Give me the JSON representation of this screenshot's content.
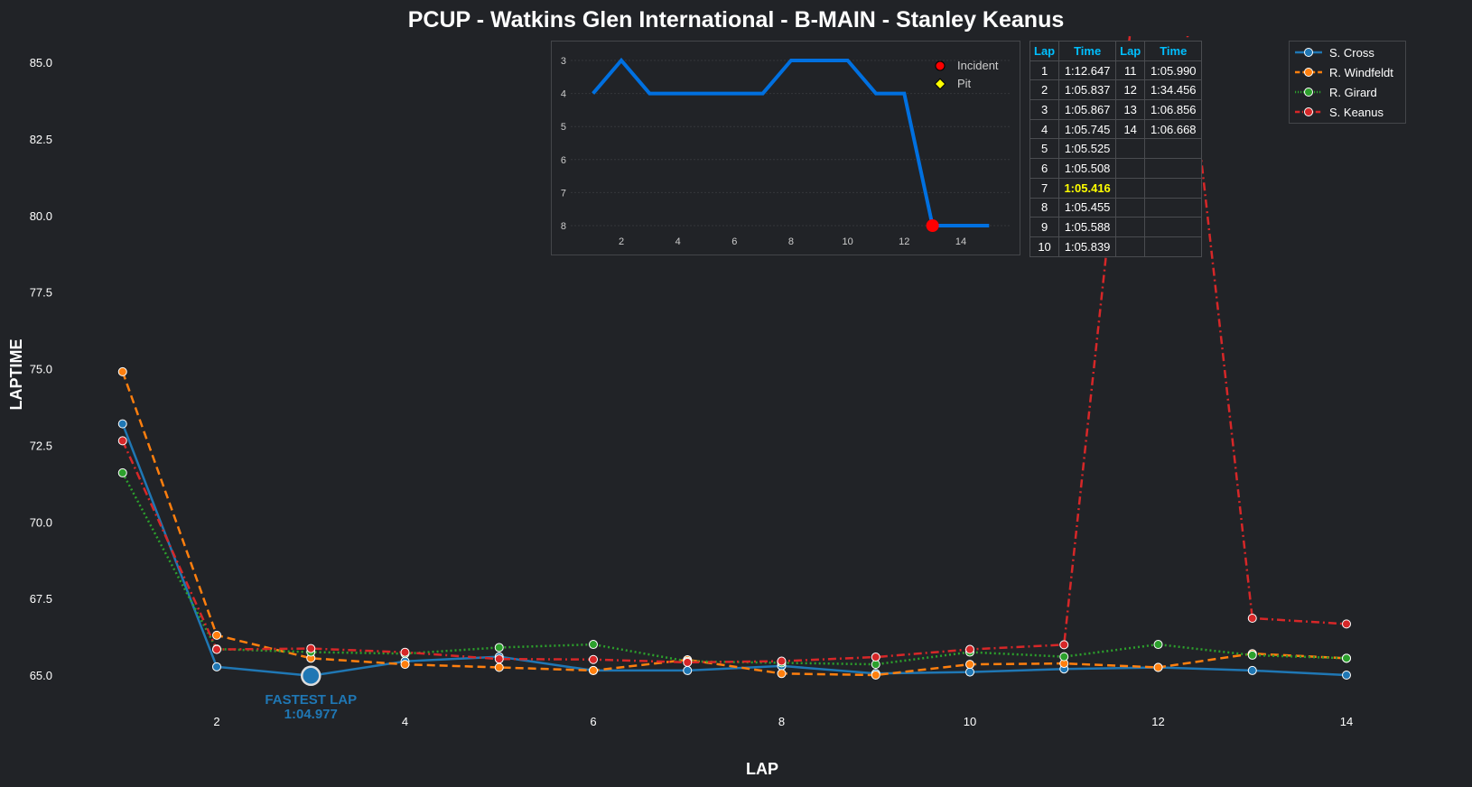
{
  "chart_data": [
    {
      "type": "line",
      "title": "PCUP - Watkins Glen International - B-MAIN - Stanley Keanus",
      "xlabel": "LAP",
      "ylabel": "LAPTIME",
      "x": [
        1,
        2,
        3,
        4,
        5,
        6,
        7,
        8,
        9,
        10,
        11,
        12,
        13,
        14
      ],
      "xticks": [
        2,
        4,
        6,
        8,
        10,
        12,
        14
      ],
      "yticks": [
        65.0,
        67.5,
        70.0,
        72.5,
        75.0,
        77.5,
        80.0,
        82.5,
        85.0
      ],
      "ytick_labels": [
        "65.0",
        "67.5",
        "70.0",
        "72.5",
        "75.0",
        "77.5",
        "80.0",
        "82.5",
        "85.0"
      ],
      "xlim": [
        0.5,
        14.5
      ],
      "ylim": [
        63.9,
        85.8
      ],
      "grid": false,
      "legend_position": "top-right",
      "series": [
        {
          "name": "S. Cross",
          "color": "#1f77b4",
          "dash": "",
          "values": [
            73.2,
            65.27,
            64.977,
            65.45,
            65.6,
            65.15,
            65.15,
            65.3,
            65.05,
            65.1,
            65.2,
            65.25,
            65.15,
            65.0
          ]
        },
        {
          "name": "R. Windfeldt",
          "color": "#ff7f0e",
          "dash": "9,5",
          "values": [
            74.9,
            66.3,
            65.55,
            65.35,
            65.25,
            65.15,
            65.5,
            65.05,
            65.0,
            65.35,
            65.38,
            65.25,
            65.7,
            65.55
          ]
        },
        {
          "name": "R. Girard",
          "color": "#2ca02c",
          "dash": "2,3",
          "values": [
            71.6,
            65.85,
            65.75,
            65.7,
            65.9,
            66.0,
            65.45,
            65.4,
            65.35,
            65.75,
            65.6,
            66.0,
            65.65,
            65.55
          ]
        },
        {
          "name": "S. Keanus",
          "color": "#d62728",
          "dash": "9,4,2,4",
          "values": [
            72.647,
            65.837,
            65.867,
            65.745,
            65.525,
            65.508,
            65.416,
            65.455,
            65.588,
            65.839,
            65.99,
            94.456,
            66.856,
            66.668
          ]
        }
      ],
      "annotation": {
        "label": "FASTEST LAP",
        "time": "1:04.977",
        "lap": 3,
        "value": 64.977,
        "color": "#1f77b4"
      }
    },
    {
      "type": "line",
      "title": "",
      "x": [
        1,
        2,
        3,
        4,
        5,
        6,
        7,
        8,
        9,
        10,
        11,
        12,
        13,
        14,
        15
      ],
      "values": [
        4,
        3,
        4,
        4,
        4,
        4,
        4,
        3,
        3,
        3,
        4,
        4,
        8,
        8,
        8
      ],
      "xticks": [
        2,
        4,
        6,
        8,
        10,
        12,
        14
      ],
      "yticks": [
        3,
        4,
        5,
        6,
        7,
        8
      ],
      "y_inverted": true,
      "color": "#0070e0",
      "incidents": [
        13
      ],
      "pits": [],
      "legend": [
        {
          "label": "Incident",
          "color": "#ff0000"
        },
        {
          "label": "Pit",
          "color": "#ffff00"
        }
      ]
    }
  ],
  "lap_table": {
    "headers": [
      "Lap",
      "Time",
      "Lap",
      "Time"
    ],
    "rows": [
      [
        "1",
        "1:12.647",
        "11",
        "1:05.990"
      ],
      [
        "2",
        "1:05.837",
        "12",
        "1:34.456"
      ],
      [
        "3",
        "1:05.867",
        "13",
        "1:06.856"
      ],
      [
        "4",
        "1:05.745",
        "14",
        "1:06.668"
      ],
      [
        "5",
        "1:05.525",
        "",
        ""
      ],
      [
        "6",
        "1:05.508",
        "",
        ""
      ],
      [
        "7",
        "1:05.416",
        "",
        ""
      ],
      [
        "8",
        "1:05.455",
        "",
        ""
      ],
      [
        "9",
        "1:05.588",
        "",
        ""
      ],
      [
        "10",
        "1:05.839",
        "",
        ""
      ]
    ],
    "best_lap_row": 6
  }
}
